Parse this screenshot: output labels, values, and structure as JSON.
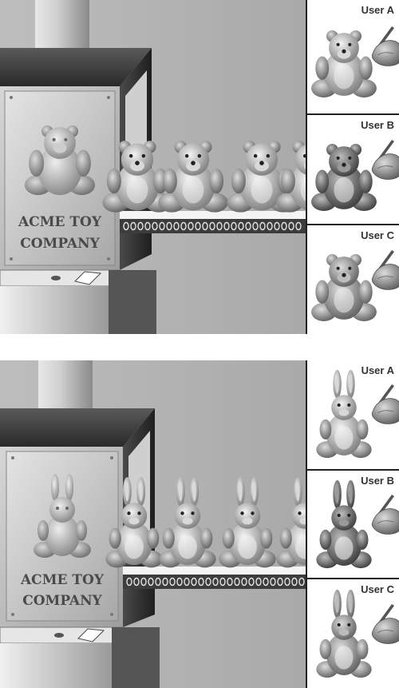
{
  "panels": [
    {
      "toy": "bear",
      "plate_line1": "ACME TOY",
      "plate_line2": "COMPANY",
      "users": [
        {
          "label": "User A"
        },
        {
          "label": "User B"
        },
        {
          "label": "User C"
        }
      ]
    },
    {
      "toy": "bunny",
      "plate_line1": "ACME TOY",
      "plate_line2": "COMPANY",
      "users": [
        {
          "label": "User A"
        },
        {
          "label": "User B"
        },
        {
          "label": "User C"
        }
      ]
    }
  ]
}
